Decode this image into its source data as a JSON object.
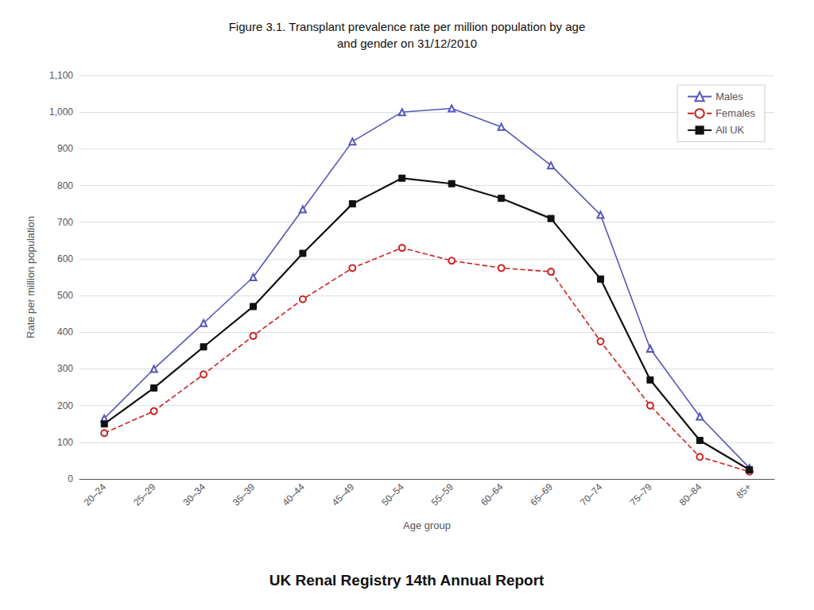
{
  "chart_data": {
    "type": "line",
    "title": "Figure 3.1. Transplant prevalence rate per million population by age\nand gender on 31/12/2010",
    "x_label": "Age group",
    "y_label": "Rate per million population",
    "annotations": [
      "UK Renal Registry 14th Annual Report"
    ],
    "categories": [
      "20–24",
      "25–29",
      "30–34",
      "35–39",
      "40–44",
      "45–49",
      "50–54",
      "55–59",
      "60–64",
      "65–69",
      "70–74",
      "75–79",
      "80–84",
      "85+"
    ],
    "series": [
      {
        "name": "Males",
        "color": "#5555bb",
        "marker": "triangle-open",
        "line_style": "solid",
        "values": [
          165,
          300,
          425,
          550,
          735,
          920,
          1000,
          1010,
          960,
          855,
          720,
          355,
          170,
          30
        ]
      },
      {
        "name": "Females",
        "color": "#cc2222",
        "marker": "circle-open",
        "line_style": "dashed",
        "values": [
          125,
          185,
          285,
          390,
          490,
          575,
          630,
          595,
          575,
          565,
          375,
          200,
          60,
          20
        ]
      },
      {
        "name": "All UK",
        "color": "#111111",
        "marker": "square",
        "line_style": "solid",
        "values": [
          150,
          248,
          360,
          470,
          615,
          750,
          820,
          805,
          765,
          710,
          545,
          270,
          105,
          25
        ]
      }
    ],
    "ylim": [
      0,
      1100
    ],
    "yticks": [
      0,
      100,
      200,
      300,
      400,
      500,
      600,
      700,
      800,
      900,
      {
        "value": 1000,
        "label": "1,000"
      },
      {
        "value": 1100,
        "label": "1,100"
      }
    ],
    "grid": true,
    "legend": "upper right"
  }
}
